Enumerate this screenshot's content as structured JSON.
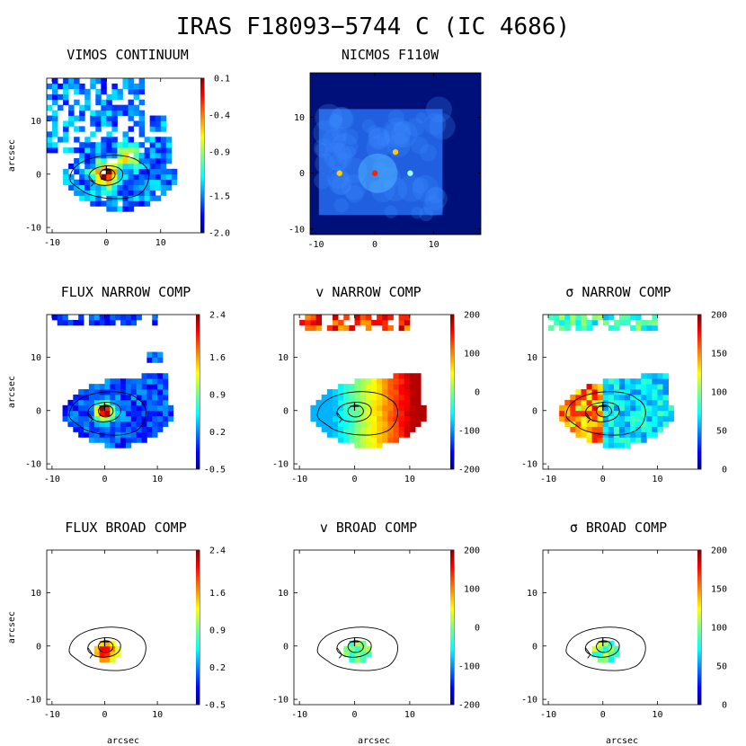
{
  "title": "IRAS F18093−5744 C (IC 4686)",
  "axis_label": "arcsec",
  "panels": {
    "vimos_continuum": {
      "title": "VIMOS CONTINUUM",
      "cbar_ticks": [
        "0.1",
        "-0.4",
        "-0.9",
        "-1.5",
        "-2.0"
      ]
    },
    "nicmos_f110w": {
      "title": "NICMOS F110W"
    },
    "flux_narrow": {
      "title": "FLUX NARROW COMP",
      "cbar_ticks": [
        "2.4",
        "1.6",
        "0.9",
        "0.2",
        "-0.5"
      ]
    },
    "v_narrow": {
      "title": "v NARROW COMP",
      "cbar_ticks": [
        "200",
        "100",
        "0",
        "-100",
        "-200"
      ]
    },
    "sigma_narrow": {
      "title": "σ NARROW COMP",
      "cbar_ticks": [
        "200",
        "150",
        "100",
        "50",
        "0"
      ]
    },
    "flux_broad": {
      "title": "FLUX BROAD COMP",
      "cbar_ticks": [
        "2.4",
        "1.6",
        "0.9",
        "0.2",
        "-0.5"
      ]
    },
    "v_broad": {
      "title": "v BROAD COMP",
      "cbar_ticks": [
        "200",
        "100",
        "0",
        "-100",
        "-200"
      ]
    },
    "sigma_broad": {
      "title": "σ BROAD COMP",
      "cbar_ticks": [
        "200",
        "150",
        "100",
        "50",
        "0"
      ]
    }
  },
  "chart_data": [
    {
      "id": "vimos_continuum",
      "type": "heatmap",
      "title": "VIMOS CONTINUUM",
      "xlabel": "",
      "ylabel": "arcsec",
      "xlim": [
        -11,
        18
      ],
      "ylim": [
        -11,
        18
      ],
      "xticks": [
        -10,
        0,
        10
      ],
      "yticks": [
        -10,
        0,
        10
      ],
      "colorbar": {
        "min": -2.0,
        "max": 0.1,
        "ticks": [
          0.1,
          -0.4,
          -0.9,
          -1.5,
          -2.0
        ]
      },
      "contours": true,
      "nucleus_marker": [
        0,
        0
      ]
    },
    {
      "id": "nicmos_f110w",
      "type": "heatmap",
      "title": "NICMOS F110W",
      "xlabel": "",
      "ylabel": "",
      "xlim": [
        -11,
        18
      ],
      "ylim": [
        -11,
        18
      ],
      "xticks": [
        -10,
        0,
        10
      ],
      "yticks": [
        -10,
        0,
        10
      ],
      "colorbar": null
    },
    {
      "id": "flux_narrow",
      "type": "heatmap",
      "title": "FLUX NARROW COMP",
      "ylabel": "arcsec",
      "xlim": [
        -11,
        18
      ],
      "ylim": [
        -11,
        18
      ],
      "xticks": [
        -10,
        0,
        10
      ],
      "yticks": [
        -10,
        0,
        10
      ],
      "colorbar": {
        "min": -0.5,
        "max": 2.4,
        "ticks": [
          2.4,
          1.6,
          0.9,
          0.2,
          -0.5
        ]
      },
      "contours": true,
      "nucleus_marker": [
        0,
        0
      ]
    },
    {
      "id": "v_narrow",
      "type": "heatmap",
      "title": "v NARROW COMP",
      "ylabel": "",
      "xlim": [
        -11,
        18
      ],
      "ylim": [
        -11,
        18
      ],
      "xticks": [
        -10,
        0,
        10
      ],
      "yticks": [
        -10,
        0,
        10
      ],
      "colorbar": {
        "min": -200,
        "max": 200,
        "ticks": [
          200,
          100,
          0,
          -100,
          -200
        ]
      },
      "contours": true,
      "nucleus_marker": [
        0,
        0
      ]
    },
    {
      "id": "sigma_narrow",
      "type": "heatmap",
      "title": "σ NARROW COMP",
      "ylabel": "",
      "xlim": [
        -11,
        18
      ],
      "ylim": [
        -11,
        18
      ],
      "xticks": [
        -10,
        0,
        10
      ],
      "yticks": [
        -10,
        0,
        10
      ],
      "colorbar": {
        "min": 0,
        "max": 200,
        "ticks": [
          200,
          150,
          100,
          50,
          0
        ]
      },
      "contours": true,
      "nucleus_marker": [
        0,
        0
      ]
    },
    {
      "id": "flux_broad",
      "type": "heatmap",
      "title": "FLUX BROAD COMP",
      "xlabel": "arcsec",
      "ylabel": "arcsec",
      "xlim": [
        -11,
        18
      ],
      "ylim": [
        -11,
        18
      ],
      "xticks": [
        -10,
        0,
        10
      ],
      "yticks": [
        -10,
        0,
        10
      ],
      "colorbar": {
        "min": -0.5,
        "max": 2.4,
        "ticks": [
          2.4,
          1.6,
          0.9,
          0.2,
          -0.5
        ]
      },
      "contours": true,
      "nucleus_marker": [
        0,
        0
      ]
    },
    {
      "id": "v_broad",
      "type": "heatmap",
      "title": "v BROAD COMP",
      "xlabel": "arcsec",
      "ylabel": "",
      "xlim": [
        -11,
        18
      ],
      "ylim": [
        -11,
        18
      ],
      "xticks": [
        -10,
        0,
        10
      ],
      "yticks": [
        -10,
        0,
        10
      ],
      "colorbar": {
        "min": -200,
        "max": 200,
        "ticks": [
          200,
          100,
          0,
          -100,
          -200
        ]
      },
      "contours": true,
      "nucleus_marker": [
        0,
        0
      ]
    },
    {
      "id": "sigma_broad",
      "type": "heatmap",
      "title": "σ BROAD COMP",
      "xlabel": "arcsec",
      "ylabel": "",
      "xlim": [
        -11,
        18
      ],
      "ylim": [
        -11,
        18
      ],
      "xticks": [
        -10,
        0,
        10
      ],
      "yticks": [
        -10,
        0,
        10
      ],
      "colorbar": {
        "min": 0,
        "max": 200,
        "ticks": [
          200,
          150,
          100,
          50,
          0
        ]
      },
      "contours": true,
      "nucleus_marker": [
        0,
        0
      ]
    }
  ]
}
